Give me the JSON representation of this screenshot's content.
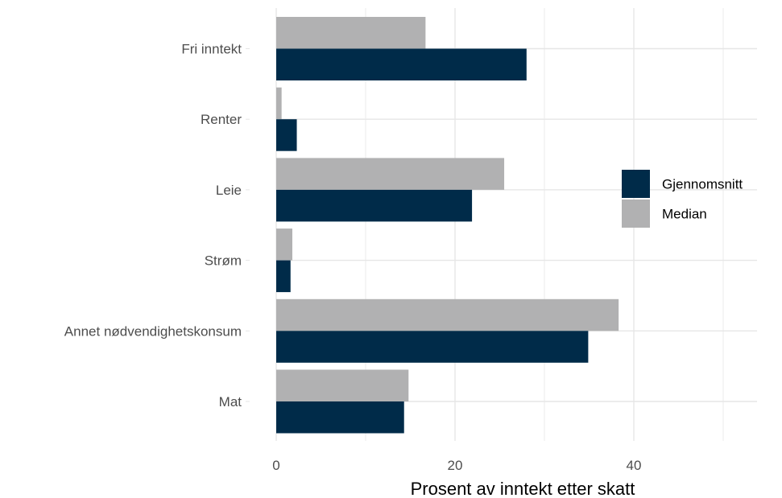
{
  "chart_data": {
    "type": "bar",
    "orientation": "horizontal",
    "categories": [
      "Fri inntekt",
      "Renter",
      "Leie",
      "Strøm",
      "Annet nødvendighetskonsum",
      "Mat"
    ],
    "series": [
      {
        "name": "Gjennomsnitt",
        "color": "#002b49",
        "values": [
          28.0,
          2.3,
          21.9,
          1.6,
          34.9,
          14.3
        ]
      },
      {
        "name": "Median",
        "color": "#b1b1b2",
        "values": [
          16.7,
          0.6,
          25.5,
          1.8,
          38.3,
          14.8
        ]
      }
    ],
    "xlabel": "Prosent av inntekt etter skatt",
    "ylabel": "",
    "xlim": [
      0,
      55
    ],
    "x_ticks": [
      0,
      20,
      40
    ],
    "x_tick_labels": [
      "0",
      "20",
      "40"
    ],
    "grid": true,
    "legend_position": "right"
  }
}
